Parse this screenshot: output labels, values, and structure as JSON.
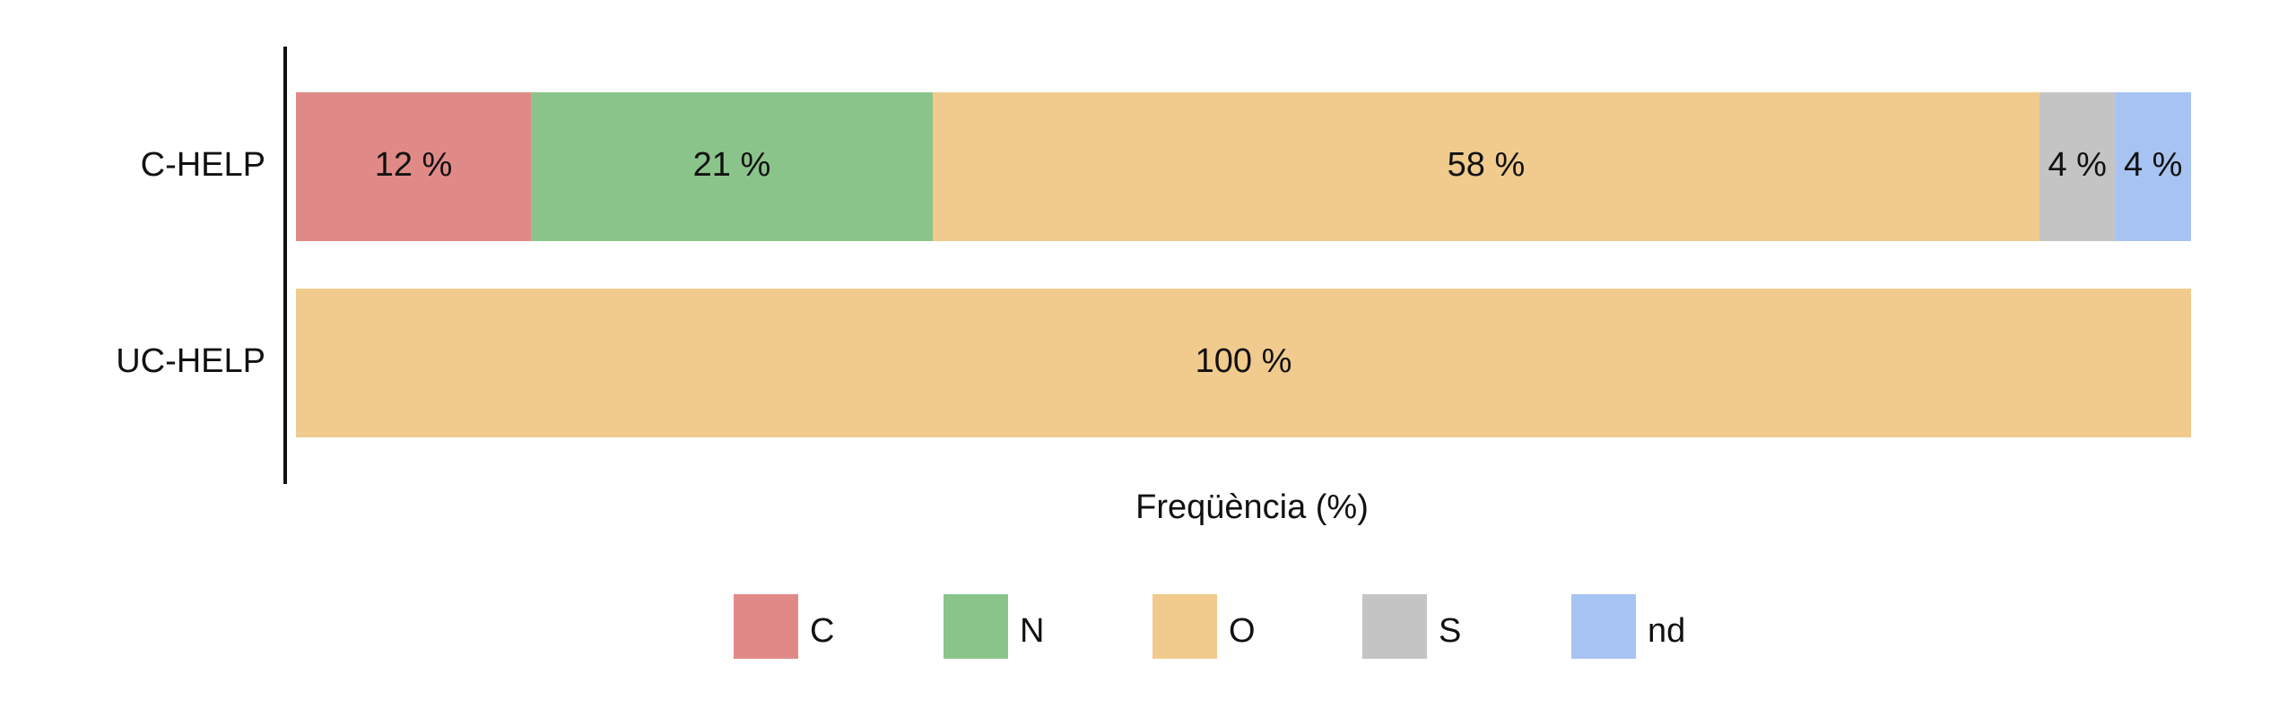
{
  "chart_data": {
    "type": "stacked-bar-horizontal",
    "categories": [
      "C-HELP",
      "UC-HELP"
    ],
    "x_label": "Freqüència (%)",
    "xlim": [
      0,
      100
    ],
    "series": [
      {
        "name": "C",
        "color": "#e08a87",
        "values": [
          12.4,
          0
        ],
        "value_labels": [
          "12 %",
          null
        ]
      },
      {
        "name": "N",
        "color": "#8bc48a",
        "values": [
          21.2,
          0
        ],
        "value_labels": [
          "21 %",
          null
        ]
      },
      {
        "name": "O",
        "color": "#f0cb8d",
        "values": [
          58.4,
          100
        ],
        "value_labels": [
          "58 %",
          "100 %"
        ]
      },
      {
        "name": "S",
        "color": "#c4c4c4",
        "values": [
          4,
          0
        ],
        "value_labels": [
          "4 %",
          null
        ]
      },
      {
        "name": "nd",
        "color": "#a7c3f1",
        "values": [
          4,
          0
        ],
        "value_labels": [
          "4 %",
          null
        ]
      }
    ],
    "legend": "bottom"
  }
}
